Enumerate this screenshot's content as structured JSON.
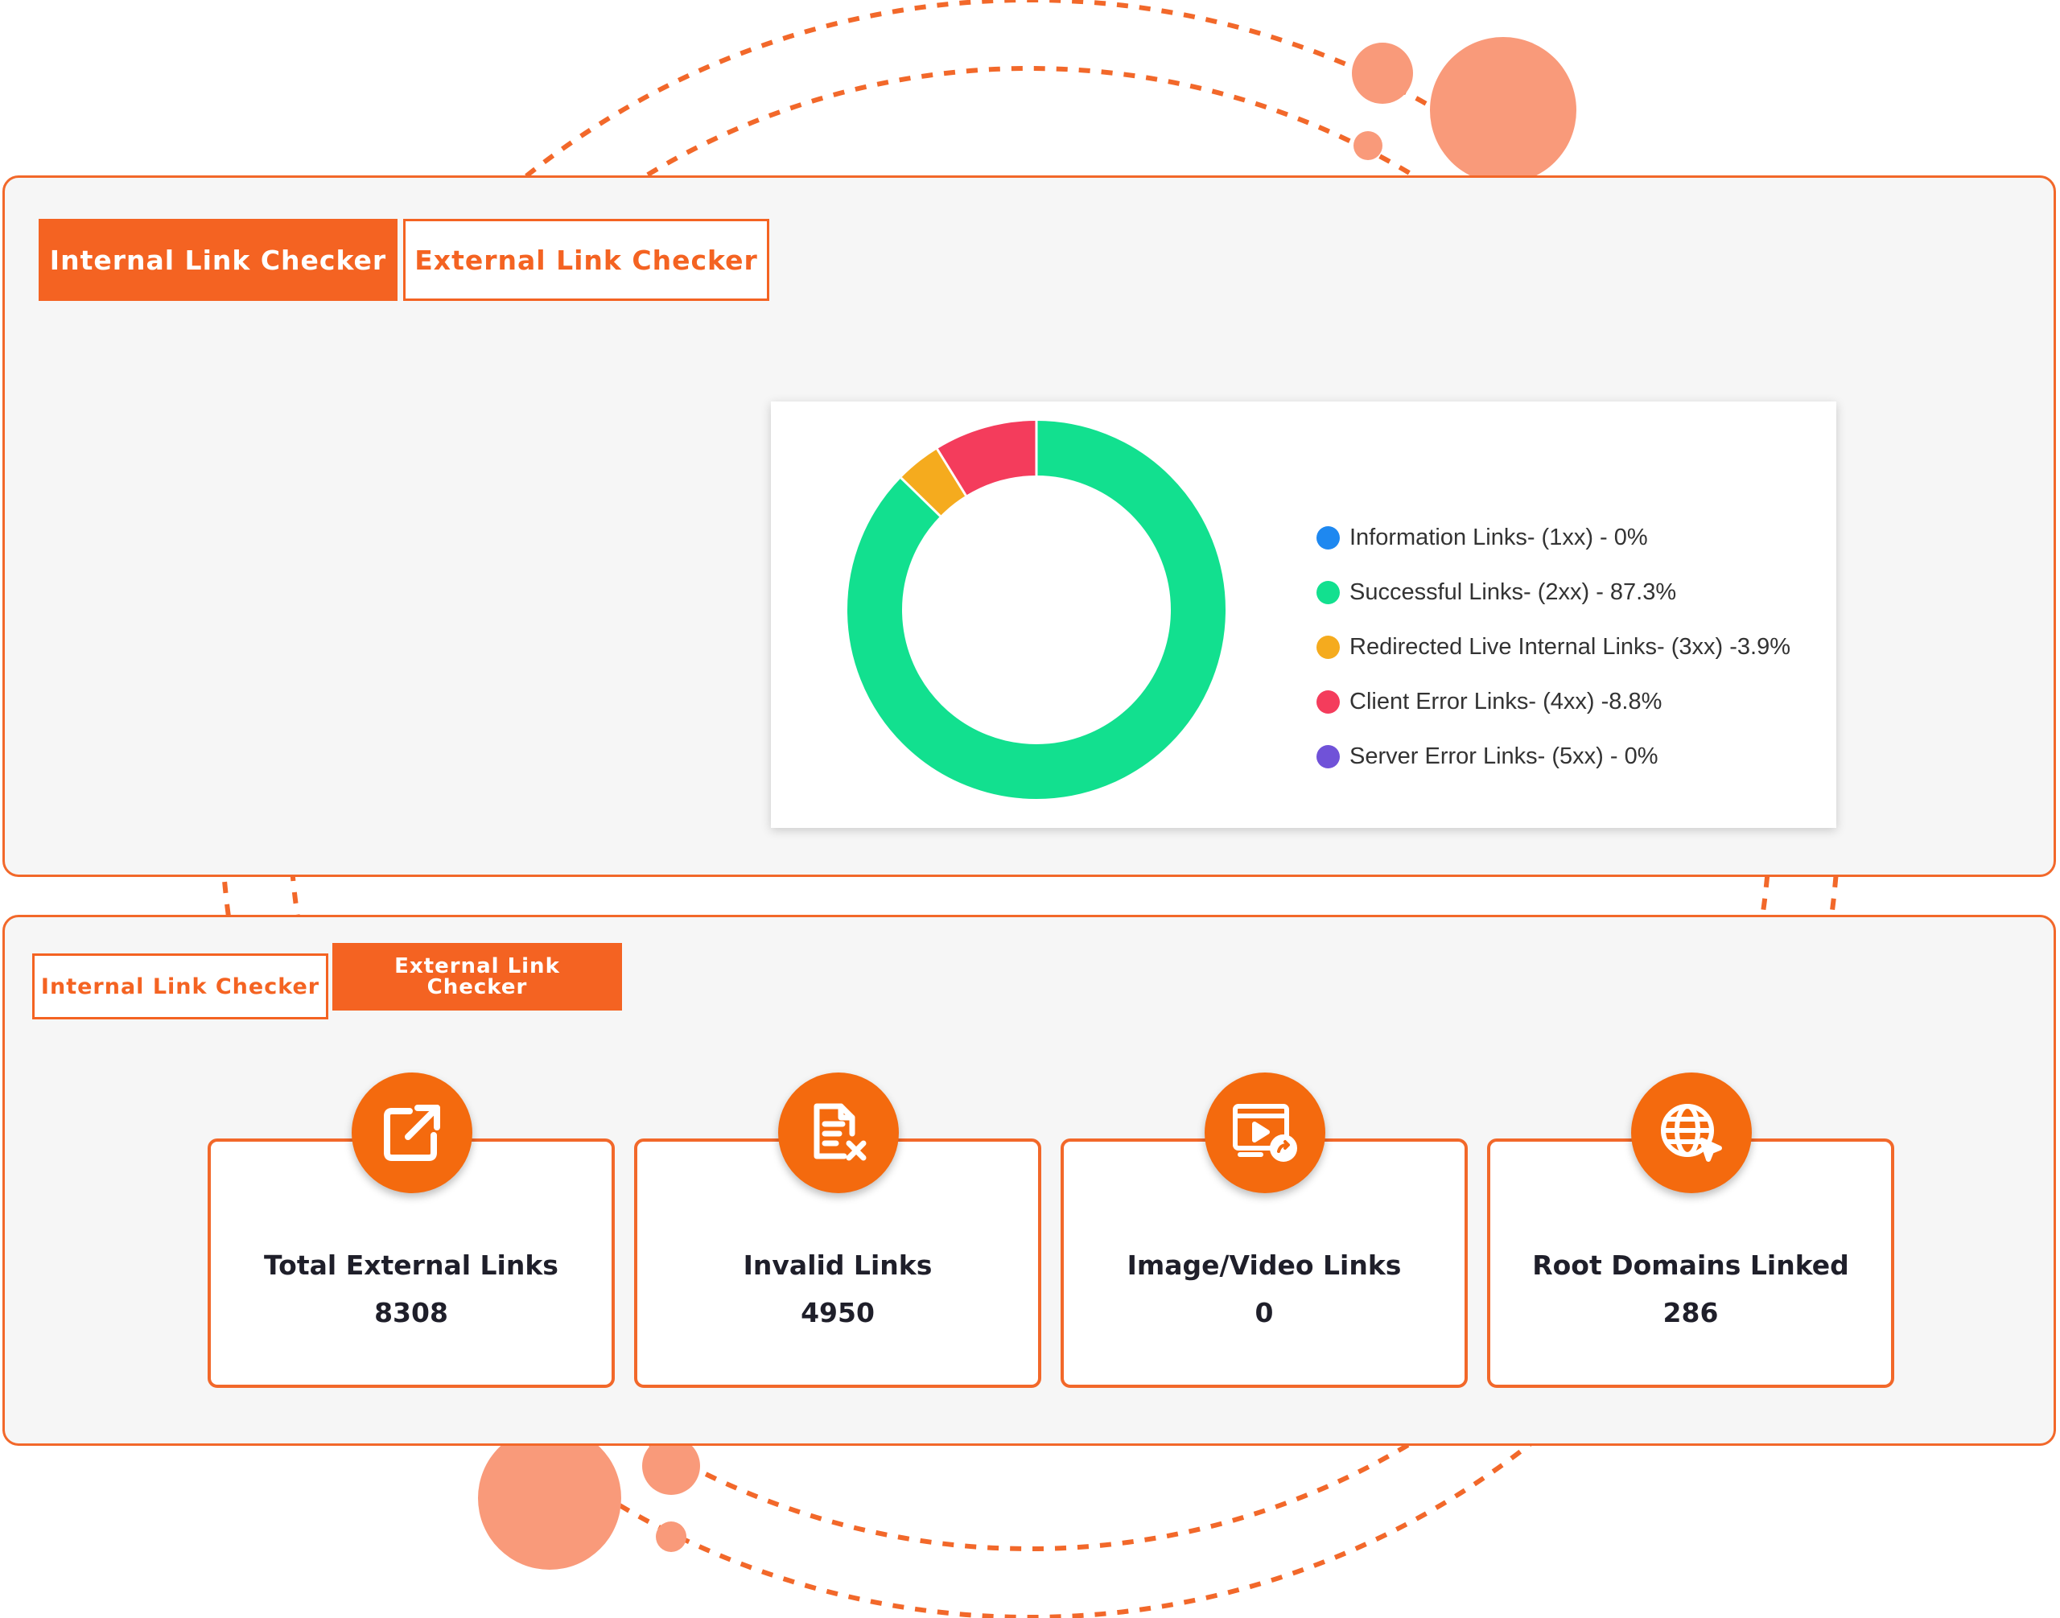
{
  "accent_color": "#f46322",
  "top_panel": {
    "tabs": [
      {
        "label": "Internal Link Checker",
        "active": true
      },
      {
        "label": "External Link Checker",
        "active": false
      }
    ]
  },
  "chart_data": {
    "type": "pie",
    "donut": true,
    "series": [
      {
        "name": "Information Links- (1xx) - 0%",
        "value": 0,
        "color": "#1e88f0"
      },
      {
        "name": "Successful Links- (2xx) - 87.3%",
        "value": 87.3,
        "color": "#12e08f"
      },
      {
        "name": "Redirected Live Internal Links- (3xx) -3.9%",
        "value": 3.9,
        "color": "#f5ab1e"
      },
      {
        "name": "Client Error Links- (4xx) -8.8%",
        "value": 8.8,
        "color": "#f43c5c"
      },
      {
        "name": "Server Error Links- (5xx) - 0%",
        "value": 0,
        "color": "#7052d8"
      }
    ],
    "legend_position": "right"
  },
  "bottom_panel": {
    "tabs": [
      {
        "label": "Internal Link Checker",
        "active": false
      },
      {
        "label": "External Link Checker",
        "active": true
      }
    ],
    "stats": [
      {
        "label": "Total External Links",
        "value": "8308",
        "icon": "external-link-icon"
      },
      {
        "label": "Invalid Links",
        "value": "4950",
        "icon": "invalid-document-icon"
      },
      {
        "label": "Image/Video Links",
        "value": "0",
        "icon": "media-link-icon"
      },
      {
        "label": "Root Domains Linked",
        "value": "286",
        "icon": "globe-cursor-icon"
      }
    ]
  }
}
